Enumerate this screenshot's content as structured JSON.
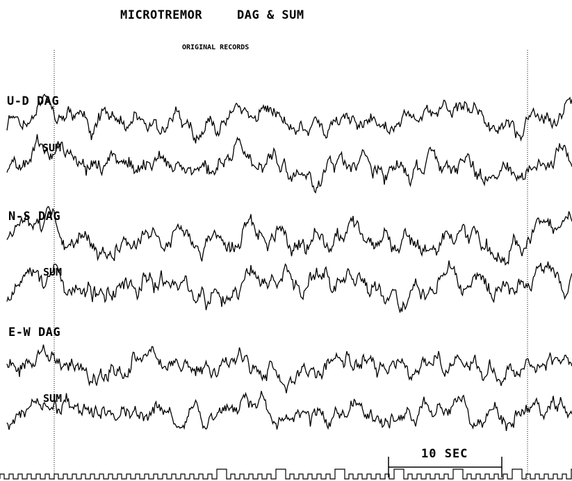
{
  "title_left": "MICROTREMOR",
  "title_right": "DAG & SUM",
  "subtitle": "ORIGINAL RECORDS",
  "chart_data": {
    "type": "line",
    "title": "MICROTREMOR DAG & SUM",
    "subtitle": "ORIGINAL RECORDS",
    "traces": [
      {
        "component": "U-D",
        "instrument": "DAG",
        "label": "U-D DAG"
      },
      {
        "component": "U-D",
        "instrument": "SUM",
        "label": "SUM"
      },
      {
        "component": "N-S",
        "instrument": "DAG",
        "label": "N-S DAG"
      },
      {
        "component": "N-S",
        "instrument": "SUM",
        "label": "SUM"
      },
      {
        "component": "E-W",
        "instrument": "DAG",
        "label": "E-W DAG"
      },
      {
        "component": "E-W",
        "instrument": "SUM",
        "label": "SUM"
      }
    ],
    "time_scale": {
      "label": "10 SEC",
      "seconds": 10
    },
    "grid": false,
    "line_color": "#000000"
  }
}
